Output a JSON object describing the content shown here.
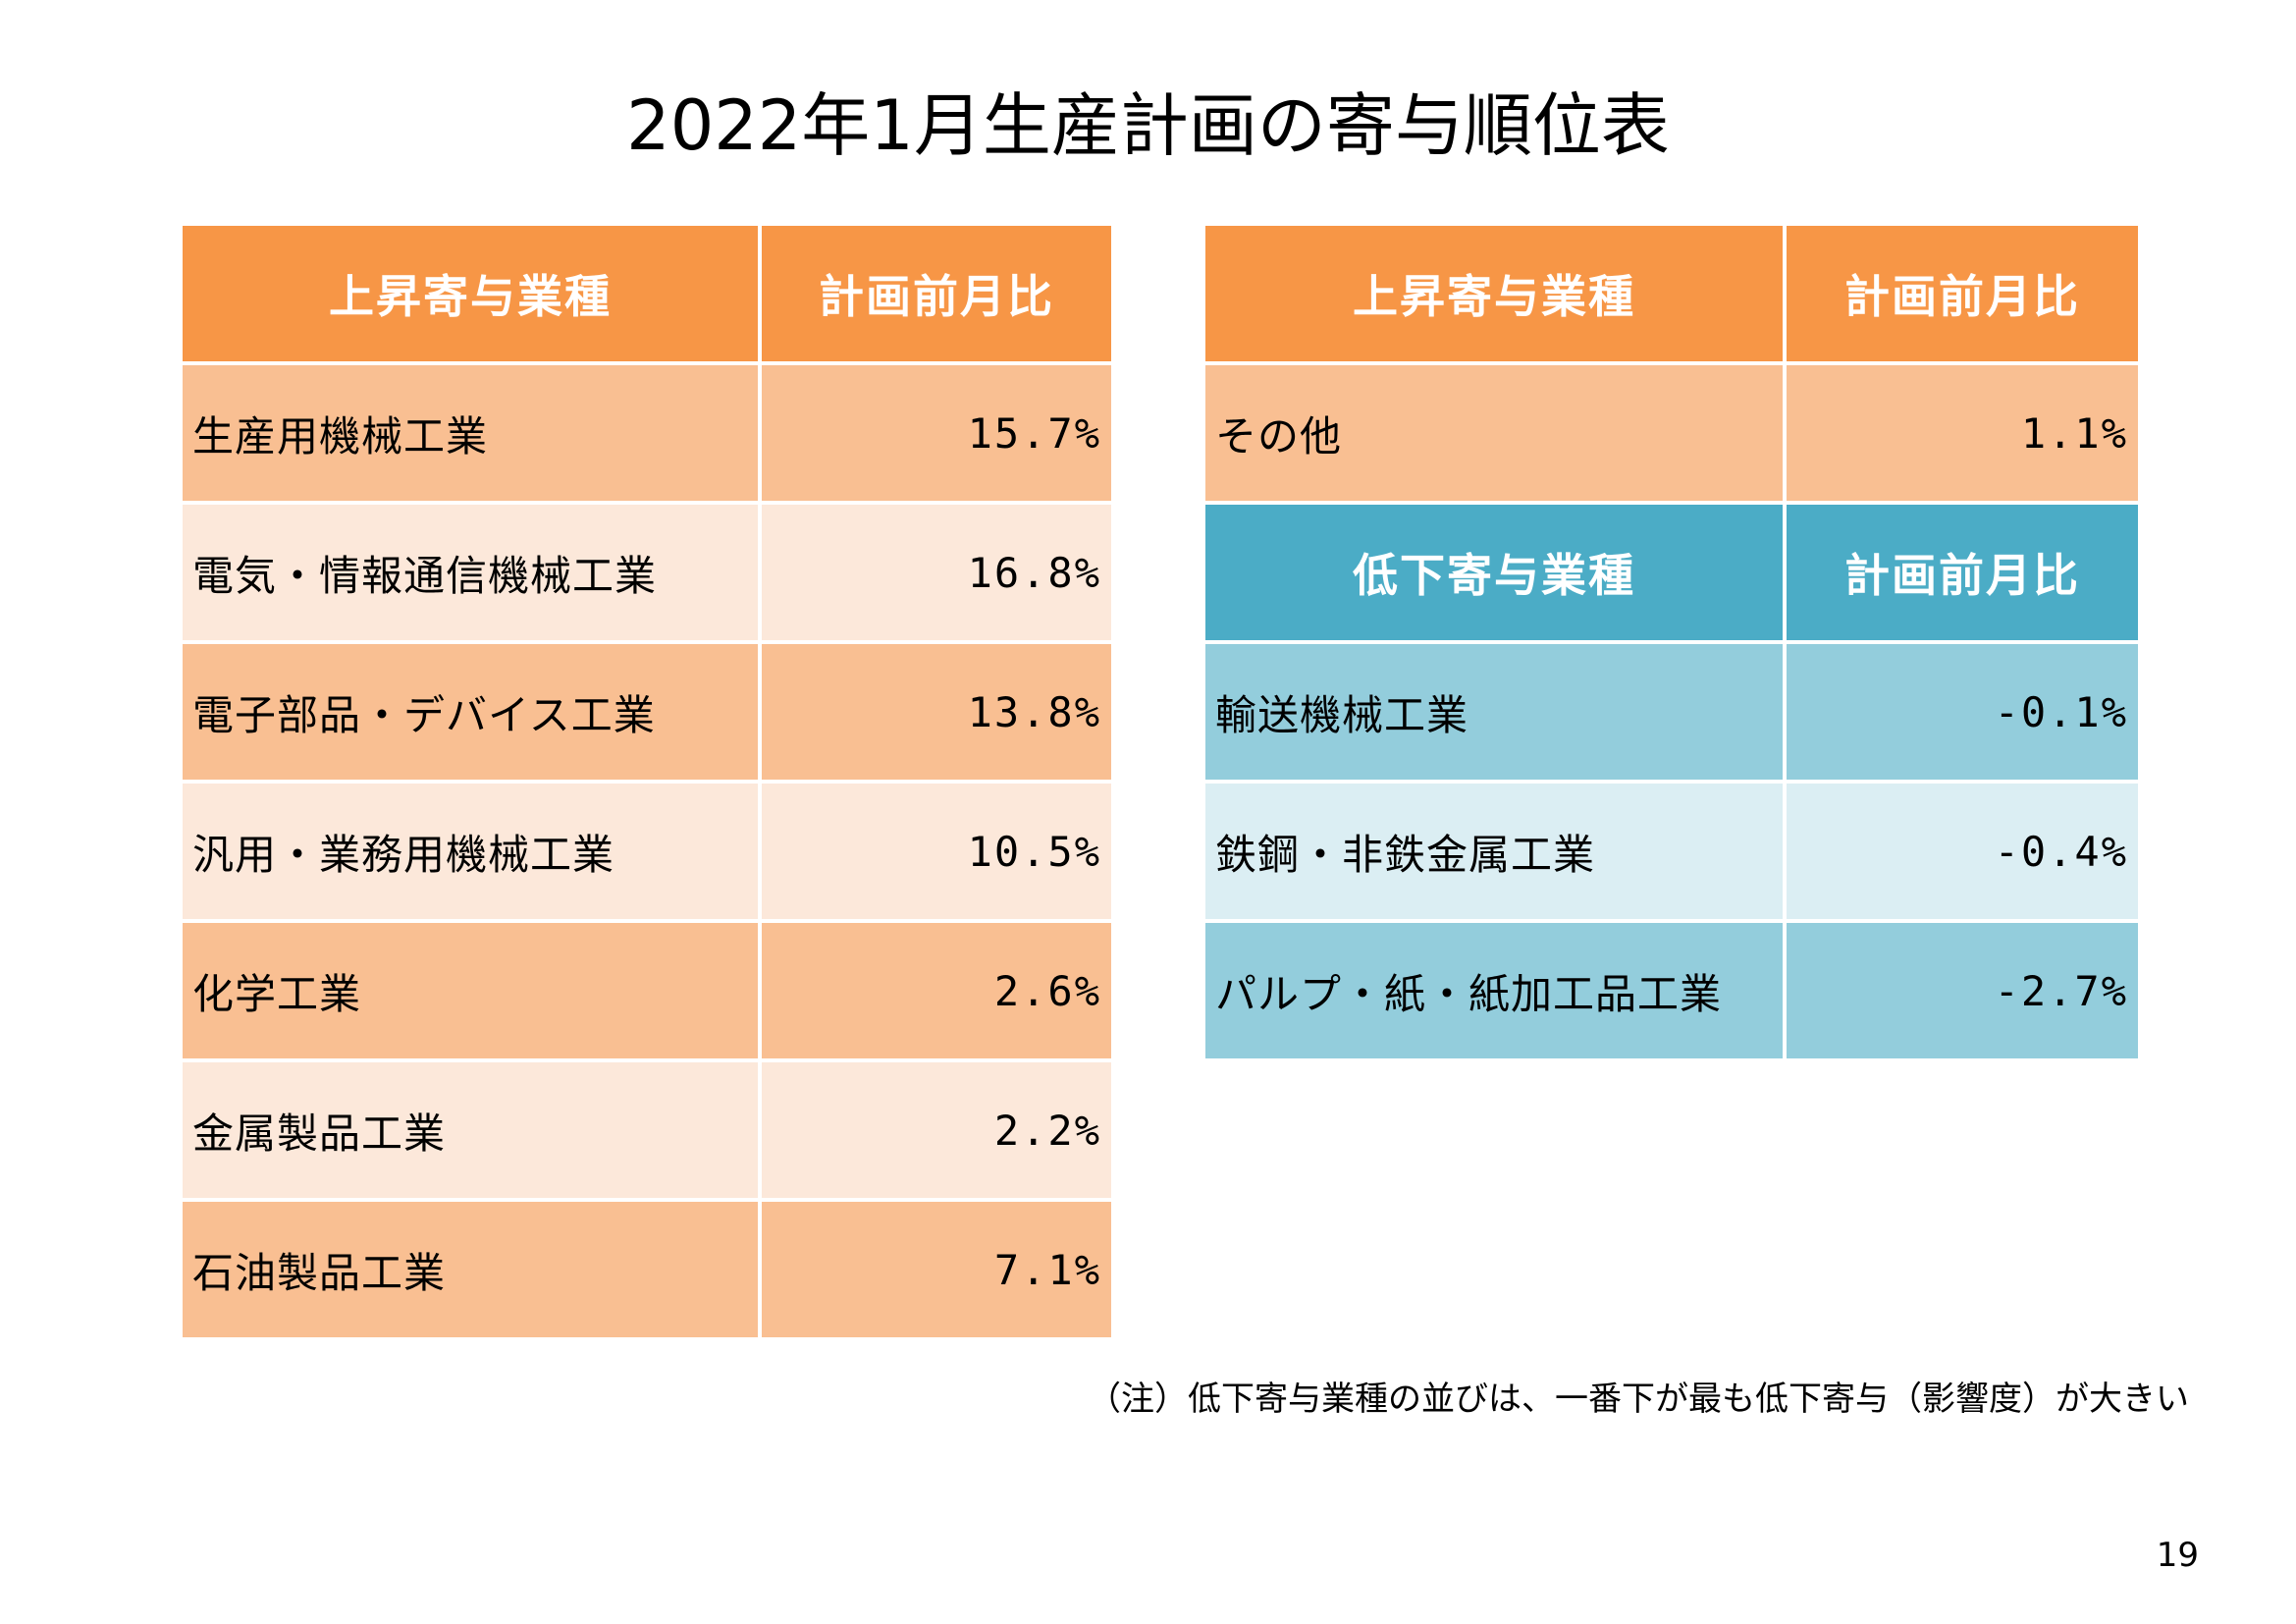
{
  "title": "2022年1月生産計画の寄与順位表",
  "left_table": {
    "header": {
      "col1": "上昇寄与業種",
      "col2": "計画前月比"
    },
    "rows": [
      {
        "name": "生産用機械工業",
        "value": "15.7%"
      },
      {
        "name": "電気・情報通信機械工業",
        "value": "16.8%"
      },
      {
        "name": "電子部品・デバイス工業",
        "value": "13.8%"
      },
      {
        "name": "汎用・業務用機械工業",
        "value": "10.5%"
      },
      {
        "name": "化学工業",
        "value": "2.6%"
      },
      {
        "name": "金属製品工業",
        "value": "2.2%"
      },
      {
        "name": "石油製品工業",
        "value": "7.1%"
      }
    ]
  },
  "right_table": {
    "rise_header": {
      "col1": "上昇寄与業種",
      "col2": "計画前月比"
    },
    "rise_rows": [
      {
        "name": "その他",
        "value": "1.1%"
      }
    ],
    "fall_header": {
      "col1": "低下寄与業種",
      "col2": "計画前月比"
    },
    "fall_rows": [
      {
        "name": "輸送機械工業",
        "value": "-0.1%"
      },
      {
        "name": "鉄鋼・非鉄金属工業",
        "value": "-0.4%"
      },
      {
        "name": "パルプ・紙・紙加工品工業",
        "value": "-2.7%"
      }
    ]
  },
  "note": "（注）低下寄与業種の並びは、一番下が最も低下寄与（影響度）が大きい",
  "page_number": "19",
  "colors": {
    "orange_header": "#f79646",
    "orange_row_dark": "#f9bf92",
    "orange_row_light": "#fce8da",
    "blue_header": "#4bacc6",
    "blue_row_dark": "#93cddc",
    "blue_row_light": "#dbeef3"
  }
}
